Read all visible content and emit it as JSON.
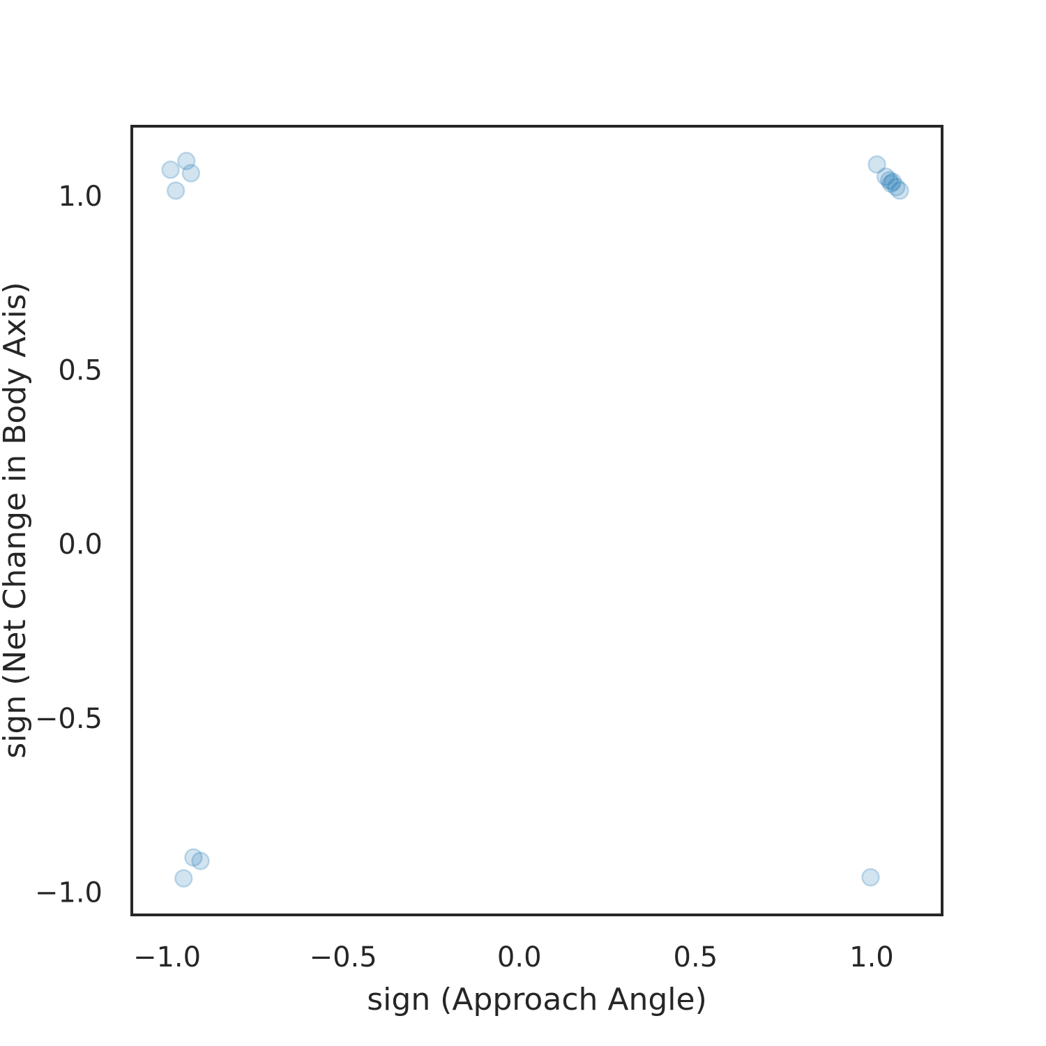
{
  "chart_data": {
    "type": "scatter",
    "title": "",
    "xlabel": "sign (Approach Angle)",
    "ylabel": "sign (Net Change in Body Axis)",
    "xlim": [
      -1.1,
      1.2
    ],
    "ylim": [
      -1.065,
      1.2
    ],
    "xticks": [
      -1.0,
      -0.5,
      0.0,
      0.5,
      1.0
    ],
    "xtick_labels": [
      "−1.0",
      "−0.5",
      "0.0",
      "0.5",
      "1.0"
    ],
    "yticks": [
      -1.0,
      -0.5,
      0.0,
      0.5,
      1.0
    ],
    "ytick_labels": [
      "−1.0",
      "−0.5",
      "0.0",
      "0.5",
      "1.0"
    ],
    "grid": false,
    "legend": "none",
    "color": "#1f77b4",
    "points": [
      {
        "x": -0.99,
        "y": 1.075
      },
      {
        "x": -0.975,
        "y": 1.015
      },
      {
        "x": -0.945,
        "y": 1.1
      },
      {
        "x": -0.932,
        "y": 1.065
      },
      {
        "x": -0.953,
        "y": -0.96
      },
      {
        "x": -0.925,
        "y": -0.9
      },
      {
        "x": -0.905,
        "y": -0.91
      },
      {
        "x": 1.015,
        "y": 1.09
      },
      {
        "x": 1.04,
        "y": 1.055
      },
      {
        "x": 1.05,
        "y": 1.045
      },
      {
        "x": 1.055,
        "y": 1.035
      },
      {
        "x": 1.06,
        "y": 1.04
      },
      {
        "x": 1.07,
        "y": 1.025
      },
      {
        "x": 1.08,
        "y": 1.015
      },
      {
        "x": 0.997,
        "y": -0.957
      }
    ]
  }
}
